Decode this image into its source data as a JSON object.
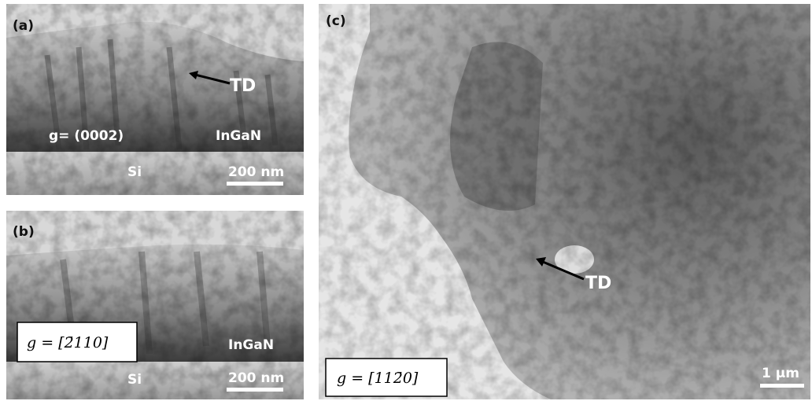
{
  "panels": [
    {
      "label": "(a)",
      "arrow_label": "TD",
      "g_vector": "g= (0002)",
      "layer": "InGaN",
      "substrate": "Si",
      "scale_bar": "200 nm"
    },
    {
      "label": "(b)",
      "g_vector": "g = [2̄110]",
      "layer": "InGaN",
      "substrate": "Si",
      "scale_bar": "200 nm"
    },
    {
      "label": "(c)",
      "arrow_label": "TD",
      "g_vector": "g = [112̄0]",
      "scale_bar": "1 µm"
    }
  ]
}
